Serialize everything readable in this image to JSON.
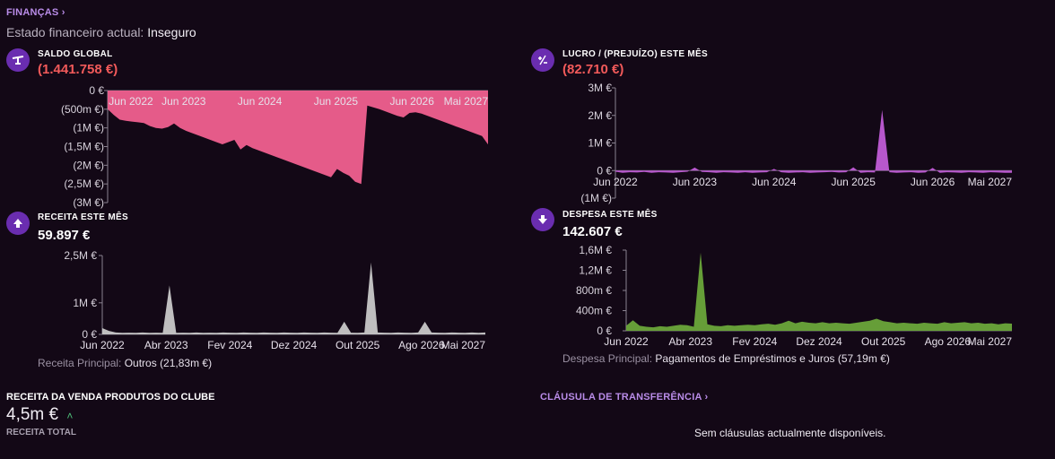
{
  "header": {
    "finances_link": "FINANÇAS",
    "status_label": "Estado financeiro actual:",
    "status_value": "Inseguro"
  },
  "cards": {
    "saldo": {
      "title": "SALDO GLOBAL",
      "value": "(1.441.758 €)",
      "icon": "scale-icon"
    },
    "lucro": {
      "title": "LUCRO / (PREJUÍZO) ESTE MÊS",
      "value": "(82.710 €)",
      "icon": "plus-minus-icon"
    },
    "receita": {
      "title": "RECEITA ESTE MÊS",
      "value": "59.897 €",
      "icon": "arrow-up-icon",
      "footnote_label": "Receita Principal:",
      "footnote_value": "Outros (21,83m €)"
    },
    "despesa": {
      "title": "DESPESA ESTE MÊS",
      "value": "142.607 €",
      "icon": "arrow-down-icon",
      "footnote_label": "Despesa Principal:",
      "footnote_value": "Pagamentos de Empréstimos e Juros (57,19m €)"
    }
  },
  "bottom": {
    "sales_title": "RECEITA DA VENDA PRODUTOS DO CLUBE",
    "sales_value": "4,5m €",
    "sales_sub": "RECEITA TOTAL",
    "transfer_link": "CLÁUSULA DE TRANSFERÊNCIA",
    "transfer_empty": "Sem cláusulas actualmente disponíveis."
  },
  "colors": {
    "saldo": "#f0608f",
    "lucro": "#c05cd6",
    "receita": "#c8c8c8",
    "despesa": "#6aa63a",
    "negative": "#f25a5a",
    "accent": "#b98ce8"
  },
  "chart_data": [
    {
      "id": "saldo",
      "type": "area",
      "ylim": [
        -3000000,
        0
      ],
      "ytick_values": [
        0,
        -500000,
        -1000000,
        -1500000,
        -2000000,
        -2500000,
        -3000000
      ],
      "yticks": [
        "0 €",
        "(500m €)",
        "(1M €)",
        "(1,5M €)",
        "(2M €)",
        "(2,5M €)",
        "(3M €)"
      ],
      "xticks": [
        "Jun 2022",
        "Jun 2023",
        "Jun 2024",
        "Jun 2025",
        "Jun 2026",
        "Mai 2027"
      ],
      "values": [
        -500000,
        -650000,
        -780000,
        -810000,
        -830000,
        -850000,
        -870000,
        -950000,
        -1000000,
        -1020000,
        -980000,
        -880000,
        -1000000,
        -1080000,
        -1140000,
        -1200000,
        -1260000,
        -1320000,
        -1380000,
        -1440000,
        -1380000,
        -1320000,
        -1580000,
        -1460000,
        -1540000,
        -1600000,
        -1660000,
        -1720000,
        -1780000,
        -1840000,
        -1900000,
        -1960000,
        -2020000,
        -2080000,
        -2140000,
        -2200000,
        -2260000,
        -2320000,
        -2100000,
        -2200000,
        -2280000,
        -2440000,
        -2500000,
        -400000,
        -450000,
        -500000,
        -560000,
        -620000,
        -680000,
        -720000,
        -600000,
        -580000,
        -620000,
        -680000,
        -740000,
        -800000,
        -860000,
        -920000,
        -980000,
        -1040000,
        -1100000,
        -1160000,
        -1220000,
        -1441758
      ]
    },
    {
      "id": "lucro",
      "type": "area",
      "ylim": [
        -1000000,
        3000000
      ],
      "ytick_values": [
        3000000,
        2000000,
        1000000,
        0,
        -1000000
      ],
      "yticks": [
        "3M €",
        "2M €",
        "1M €",
        "0 €",
        "(1M €)"
      ],
      "xticks": [
        "Jun 2022",
        "Jun 2023",
        "Jun 2024",
        "Jun 2025",
        "Jun 2026",
        "Mai 2027"
      ],
      "values": [
        -40000,
        -80000,
        -60000,
        -70000,
        -50000,
        -80000,
        -60000,
        -70000,
        -80000,
        -60000,
        -40000,
        110000,
        -50000,
        -60000,
        -80000,
        -60000,
        -70000,
        -80000,
        -60000,
        -80000,
        -70000,
        -60000,
        60000,
        -60000,
        -80000,
        -70000,
        -60000,
        -80000,
        -70000,
        -60000,
        -50000,
        -70000,
        -60000,
        120000,
        -80000,
        -60000,
        -70000,
        2200000,
        -60000,
        -80000,
        -70000,
        -60000,
        -80000,
        -70000,
        100000,
        -80000,
        -60000,
        -70000,
        -80000,
        -60000,
        -70000,
        -80000,
        -60000,
        -70000,
        -80000,
        -82710
      ]
    },
    {
      "id": "receita",
      "type": "area",
      "ylim": [
        0,
        2500000
      ],
      "ytick_values": [
        2500000,
        1000000,
        0
      ],
      "yticks": [
        "2,5M €",
        "1M €",
        "0 €"
      ],
      "xticks": [
        "Jun 2022",
        "Abr 2023",
        "Fev 2024",
        "Dez 2024",
        "Out 2025",
        "Ago 2026",
        "Mai 2027"
      ],
      "values": [
        200000,
        110000,
        60000,
        50000,
        55000,
        50000,
        60000,
        50000,
        55000,
        50000,
        1550000,
        50000,
        55000,
        50000,
        60000,
        50000,
        55000,
        50000,
        60000,
        55000,
        50000,
        60000,
        55000,
        50000,
        60000,
        55000,
        50000,
        60000,
        55000,
        50000,
        60000,
        55000,
        50000,
        60000,
        55000,
        50000,
        400000,
        55000,
        50000,
        60000,
        2280000,
        60000,
        55000,
        50000,
        60000,
        55000,
        50000,
        60000,
        400000,
        60000,
        55000,
        50000,
        60000,
        55000,
        50000,
        60000,
        50000,
        59897
      ]
    },
    {
      "id": "despesa",
      "type": "area",
      "ylim": [
        0,
        1600000
      ],
      "ytick_values": [
        1600000,
        1200000,
        800000,
        400000,
        0
      ],
      "yticks": [
        "1,6M €",
        "1,2M €",
        "800m €",
        "400m €",
        "0 €"
      ],
      "xticks": [
        "Jun 2022",
        "Abr 2023",
        "Fev 2024",
        "Dez 2024",
        "Out 2025",
        "Ago 2026",
        "Mai 2027"
      ],
      "values": [
        100000,
        210000,
        100000,
        80000,
        70000,
        90000,
        80000,
        100000,
        120000,
        110000,
        80000,
        1550000,
        130000,
        100000,
        90000,
        110000,
        100000,
        110000,
        120000,
        110000,
        130000,
        140000,
        120000,
        150000,
        200000,
        150000,
        180000,
        160000,
        150000,
        170000,
        150000,
        160000,
        150000,
        140000,
        160000,
        180000,
        200000,
        240000,
        190000,
        170000,
        150000,
        160000,
        150000,
        140000,
        160000,
        150000,
        140000,
        170000,
        150000,
        160000,
        170000,
        150000,
        160000,
        140000,
        150000,
        130000,
        150000,
        142607
      ]
    }
  ]
}
